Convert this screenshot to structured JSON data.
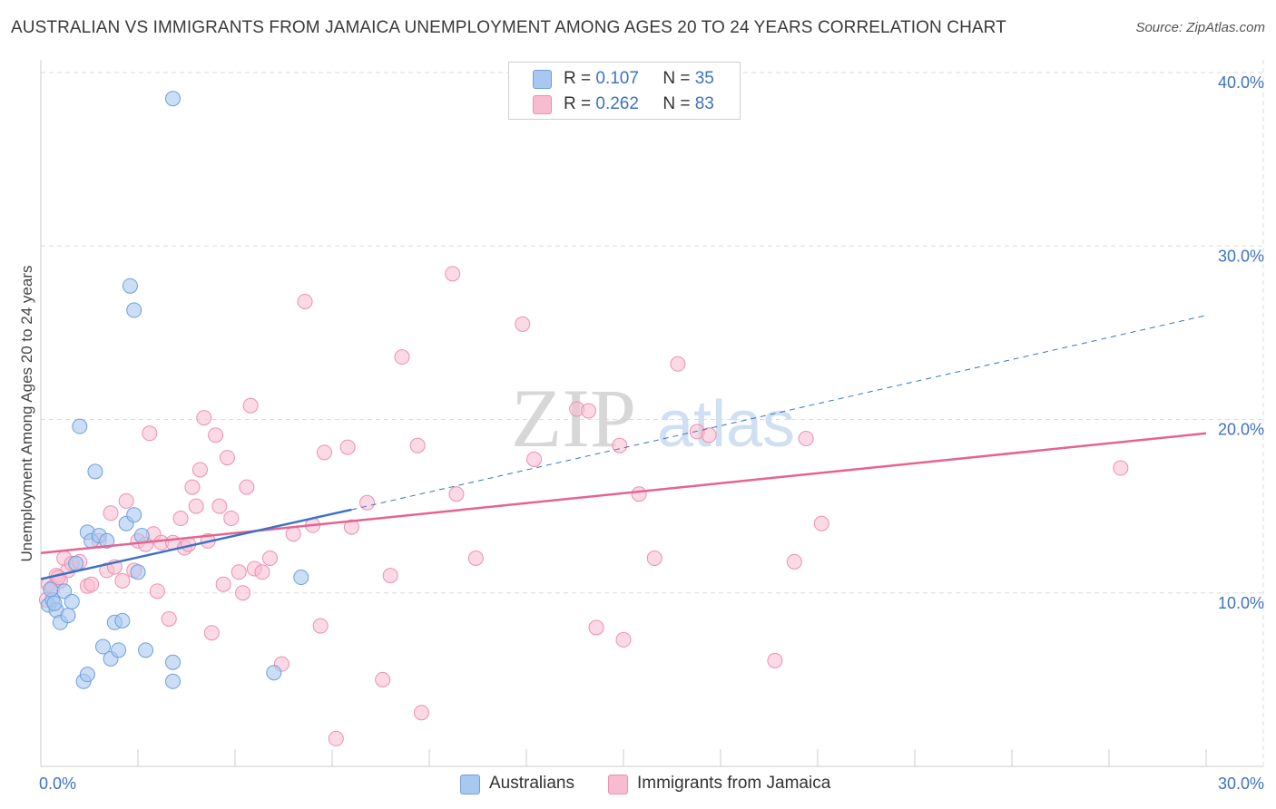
{
  "header": {
    "title": "AUSTRALIAN VS IMMIGRANTS FROM JAMAICA UNEMPLOYMENT AMONG AGES 20 TO 24 YEARS CORRELATION CHART",
    "source": "Source: ZipAtlas.com"
  },
  "legend": {
    "r_label": "R =",
    "n_label": "N =",
    "australians": {
      "r": "0.107",
      "n": "35"
    },
    "jamaica": {
      "r": "0.262",
      "n": "83"
    }
  },
  "bottom_legend": {
    "australians": "Australians",
    "jamaica": "Immigrants from Jamaica"
  },
  "watermark": {
    "zip": "ZIP",
    "atlas": "atlas"
  },
  "chart_data": {
    "type": "scatter",
    "title": "AUSTRALIAN VS IMMIGRANTS FROM JAMAICA UNEMPLOYMENT AMONG AGES 20 TO 24 YEARS CORRELATION CHART",
    "xlabel": "",
    "ylabel": "Unemployment Among Ages 20 to 24 years",
    "xlim": [
      0,
      30
    ],
    "ylim": [
      0,
      40
    ],
    "x_tick_labels": [
      "0.0%",
      "30.0%"
    ],
    "y_ticks": [
      10,
      20,
      30,
      40
    ],
    "y_tick_labels": [
      "10.0%",
      "20.0%",
      "30.0%",
      "40.0%"
    ],
    "grid": true,
    "legend_position": "top-center",
    "colors": {
      "australians_fill": "#a9c8f0",
      "australians_stroke": "#6f9fdc",
      "australians_line": "#3b72c4",
      "jamaica_fill": "#f7bcd0",
      "jamaica_stroke": "#ee8fb0",
      "jamaica_line": "#e6638f",
      "tick_label": "#3b72c4",
      "grid": "#dddddd"
    },
    "series": [
      {
        "name": "Australians",
        "r": 0.107,
        "n": 35,
        "trend": {
          "x_start": 0.0,
          "y_start": 10.8,
          "x_end": 8.0,
          "y_end": 14.8,
          "dashed_to_x": 30.0,
          "dashed_to_y": 26.0
        },
        "points": [
          [
            0.2,
            9.3
          ],
          [
            0.3,
            9.6
          ],
          [
            0.4,
            9.0
          ],
          [
            0.5,
            8.3
          ],
          [
            0.6,
            10.1
          ],
          [
            0.7,
            8.7
          ],
          [
            0.8,
            9.5
          ],
          [
            0.9,
            11.7
          ],
          [
            1.0,
            19.6
          ],
          [
            1.2,
            13.5
          ],
          [
            1.3,
            13.0
          ],
          [
            1.4,
            17.0
          ],
          [
            1.5,
            13.3
          ],
          [
            1.6,
            6.9
          ],
          [
            1.7,
            13.0
          ],
          [
            1.8,
            6.2
          ],
          [
            1.9,
            8.3
          ],
          [
            2.0,
            6.7
          ],
          [
            2.1,
            8.4
          ],
          [
            2.2,
            14.0
          ],
          [
            2.3,
            27.7
          ],
          [
            2.4,
            14.5
          ],
          [
            2.4,
            26.3
          ],
          [
            2.5,
            11.2
          ],
          [
            2.6,
            13.3
          ],
          [
            2.7,
            6.7
          ],
          [
            3.4,
            38.5
          ],
          [
            3.4,
            6.0
          ],
          [
            3.4,
            4.9
          ],
          [
            1.1,
            4.9
          ],
          [
            1.2,
            5.3
          ],
          [
            6.0,
            5.4
          ],
          [
            6.7,
            10.9
          ],
          [
            0.25,
            10.2
          ],
          [
            0.35,
            9.4
          ]
        ]
      },
      {
        "name": "Immigrants from Jamaica",
        "r": 0.262,
        "n": 83,
        "trend": {
          "x_start": 0.0,
          "y_start": 12.3,
          "x_end": 30.0,
          "y_end": 19.2
        },
        "points": [
          [
            0.2,
            10.5
          ],
          [
            0.3,
            10.3
          ],
          [
            0.4,
            11.0
          ],
          [
            0.5,
            10.7
          ],
          [
            0.6,
            12.0
          ],
          [
            0.7,
            11.3
          ],
          [
            0.8,
            11.7
          ],
          [
            1.0,
            11.8
          ],
          [
            1.2,
            10.4
          ],
          [
            1.3,
            10.5
          ],
          [
            1.5,
            13.0
          ],
          [
            1.7,
            11.3
          ],
          [
            1.8,
            14.6
          ],
          [
            1.9,
            11.5
          ],
          [
            2.1,
            10.7
          ],
          [
            2.2,
            15.3
          ],
          [
            2.4,
            11.3
          ],
          [
            2.5,
            13.0
          ],
          [
            2.7,
            12.8
          ],
          [
            2.8,
            19.2
          ],
          [
            2.9,
            13.4
          ],
          [
            3.0,
            10.1
          ],
          [
            3.1,
            12.9
          ],
          [
            3.3,
            8.5
          ],
          [
            3.4,
            12.9
          ],
          [
            3.6,
            14.3
          ],
          [
            3.7,
            12.6
          ],
          [
            3.8,
            12.8
          ],
          [
            3.9,
            16.1
          ],
          [
            4.0,
            15.0
          ],
          [
            4.1,
            17.1
          ],
          [
            4.2,
            20.1
          ],
          [
            4.3,
            13.0
          ],
          [
            4.4,
            7.7
          ],
          [
            4.5,
            19.1
          ],
          [
            4.6,
            15.0
          ],
          [
            4.7,
            10.5
          ],
          [
            4.8,
            17.8
          ],
          [
            4.9,
            14.3
          ],
          [
            5.1,
            11.2
          ],
          [
            5.2,
            10.0
          ],
          [
            5.3,
            16.1
          ],
          [
            5.4,
            20.8
          ],
          [
            5.5,
            11.4
          ],
          [
            5.7,
            11.2
          ],
          [
            5.9,
            12.0
          ],
          [
            6.2,
            5.9
          ],
          [
            6.5,
            13.4
          ],
          [
            6.8,
            26.8
          ],
          [
            7.0,
            13.9
          ],
          [
            7.2,
            8.1
          ],
          [
            7.3,
            18.1
          ],
          [
            7.6,
            1.6
          ],
          [
            7.9,
            18.4
          ],
          [
            8.0,
            13.8
          ],
          [
            8.4,
            15.2
          ],
          [
            8.8,
            5.0
          ],
          [
            9.0,
            11.0
          ],
          [
            9.3,
            23.6
          ],
          [
            9.7,
            18.5
          ],
          [
            9.8,
            3.1
          ],
          [
            10.6,
            28.4
          ],
          [
            10.7,
            15.7
          ],
          [
            11.2,
            12.0
          ],
          [
            12.4,
            25.5
          ],
          [
            12.7,
            17.7
          ],
          [
            13.8,
            20.6
          ],
          [
            14.1,
            20.5
          ],
          [
            14.3,
            8.0
          ],
          [
            14.9,
            18.5
          ],
          [
            15.0,
            7.3
          ],
          [
            15.4,
            15.7
          ],
          [
            15.8,
            12.0
          ],
          [
            16.4,
            23.2
          ],
          [
            16.9,
            19.3
          ],
          [
            17.2,
            19.1
          ],
          [
            18.9,
            6.1
          ],
          [
            19.4,
            11.8
          ],
          [
            19.7,
            18.9
          ],
          [
            20.1,
            14.0
          ],
          [
            27.8,
            17.2
          ],
          [
            0.15,
            9.6
          ],
          [
            0.45,
            10.9
          ]
        ]
      }
    ]
  }
}
